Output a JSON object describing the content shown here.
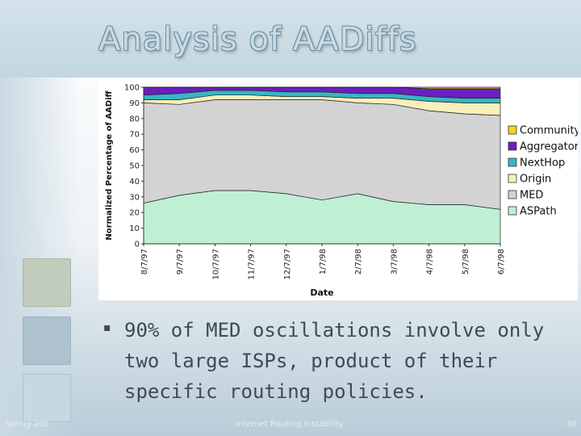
{
  "slide": {
    "title": "Analysis of AADiffs",
    "bullet": "90% of MED oscillations involve only two large ISPs, product of their specific routing policies.",
    "bullet_marker": "▪",
    "footer_left": "Spring 200",
    "footer_center": "Internet Routing Instability",
    "page_number": "46"
  },
  "chart_data": {
    "type": "area",
    "stacked": true,
    "title": "",
    "xlabel": "Date",
    "ylabel": "Normalized Percentage of AADiff",
    "ylim": [
      0,
      100
    ],
    "yticks": [
      0,
      10,
      20,
      30,
      40,
      50,
      60,
      70,
      80,
      90,
      100
    ],
    "x": [
      "8/7/97",
      "9/7/97",
      "10/7/97",
      "11/7/97",
      "12/7/97",
      "1/7/98",
      "2/7/98",
      "3/7/98",
      "4/7/98",
      "5/7/98",
      "6/7/98"
    ],
    "legend_position": "right",
    "series": [
      {
        "name": "Community",
        "color": "#f2d51d",
        "values": [
          0,
          0,
          0,
          0,
          0,
          0,
          0,
          0,
          1,
          1,
          1
        ]
      },
      {
        "name": "Aggregator",
        "color": "#6b1fc0",
        "values": [
          5,
          4,
          2,
          2,
          3,
          3,
          4,
          4,
          5,
          6,
          6
        ]
      },
      {
        "name": "NextHop",
        "color": "#37b6c4",
        "values": [
          3,
          4,
          3,
          3,
          3,
          3,
          3,
          3,
          3,
          3,
          3
        ]
      },
      {
        "name": "Origin",
        "color": "#f9efba",
        "values": [
          2,
          3,
          3,
          3,
          2,
          2,
          3,
          4,
          6,
          7,
          8
        ]
      },
      {
        "name": "MED",
        "color": "#d3d3d3",
        "values": [
          64,
          58,
          58,
          58,
          60,
          64,
          58,
          62,
          60,
          58,
          60
        ]
      },
      {
        "name": "ASPath",
        "color": "#bff0d6",
        "values": [
          26,
          31,
          34,
          34,
          32,
          28,
          32,
          27,
          25,
          25,
          22
        ]
      }
    ]
  }
}
